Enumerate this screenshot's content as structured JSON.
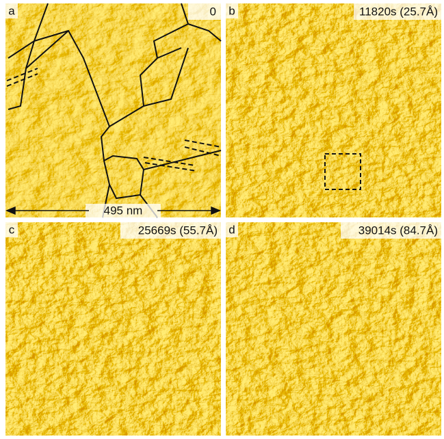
{
  "panels": [
    {
      "label": "a",
      "time": "0"
    },
    {
      "label": "b",
      "time": "11820s (25.7Å)"
    },
    {
      "label": "c",
      "time": "25669s (55.7Å)"
    },
    {
      "label": "d",
      "time": "39014s (84.7Å)"
    }
  ],
  "scale_bar": "495 nm"
}
